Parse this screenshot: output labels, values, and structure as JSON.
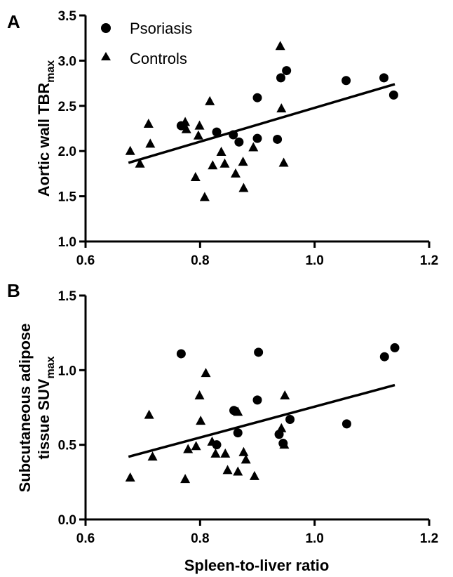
{
  "colors": {
    "ink": "#000000",
    "background": "#ffffff"
  },
  "chart_data": [
    {
      "panel": "A",
      "type": "scatter",
      "xlabel": "",
      "ylabel": "Aortic wall TBR",
      "ylabel_sub": "max",
      "xlim": [
        0.6,
        1.2
      ],
      "ylim": [
        1.0,
        3.5
      ],
      "xticks": [
        "0.6",
        "0.8",
        "1.0",
        "1.2"
      ],
      "yticks": [
        "1.0",
        "1.5",
        "2.0",
        "2.5",
        "3.0",
        "3.5"
      ],
      "legend": [
        {
          "label": "Psoriasis",
          "marker": "circle"
        },
        {
          "label": "Controls",
          "marker": "triangle"
        }
      ],
      "series": [
        {
          "name": "Psoriasis",
          "marker": "circle",
          "points": [
            [
              0.767,
              2.28
            ],
            [
              0.829,
              2.21
            ],
            [
              0.858,
              2.18
            ],
            [
              0.868,
              2.1
            ],
            [
              0.9,
              2.59
            ],
            [
              0.9,
              2.14
            ],
            [
              0.935,
              2.13
            ],
            [
              0.941,
              2.81
            ],
            [
              0.951,
              2.89
            ],
            [
              1.055,
              2.78
            ],
            [
              1.121,
              2.81
            ],
            [
              1.138,
              2.62
            ]
          ]
        },
        {
          "name": "Controls",
          "marker": "triangle",
          "points": [
            [
              0.678,
              2.0
            ],
            [
              0.695,
              1.86
            ],
            [
              0.71,
              2.3
            ],
            [
              0.713,
              2.08
            ],
            [
              0.774,
              2.32
            ],
            [
              0.776,
              2.24
            ],
            [
              0.792,
              1.71
            ],
            [
              0.797,
              2.17
            ],
            [
              0.799,
              2.28
            ],
            [
              0.808,
              1.49
            ],
            [
              0.817,
              2.55
            ],
            [
              0.822,
              1.84
            ],
            [
              0.837,
              1.99
            ],
            [
              0.843,
              1.86
            ],
            [
              0.862,
              1.75
            ],
            [
              0.875,
              1.88
            ],
            [
              0.876,
              1.59
            ],
            [
              0.893,
              2.04
            ],
            [
              0.94,
              3.16
            ],
            [
              0.942,
              2.47
            ],
            [
              0.946,
              1.87
            ]
          ]
        }
      ],
      "trendline": {
        "x": [
          0.675,
          1.14
        ],
        "y": [
          1.87,
          2.74
        ]
      }
    },
    {
      "panel": "B",
      "type": "scatter",
      "xlabel": "Spleen-to-liver ratio",
      "ylabel_line1": "Subcutaneous adipose",
      "ylabel_line2": "tissue SUV",
      "ylabel_sub": "max",
      "xlim": [
        0.6,
        1.2
      ],
      "ylim": [
        0.0,
        1.5
      ],
      "xticks": [
        "0.6",
        "0.8",
        "1.0",
        "1.2"
      ],
      "yticks": [
        "0.0",
        "0.5",
        "1.0",
        "1.5"
      ],
      "series": [
        {
          "name": "Psoriasis",
          "marker": "circle",
          "points": [
            [
              0.767,
              1.11
            ],
            [
              0.829,
              0.5
            ],
            [
              0.859,
              0.73
            ],
            [
              0.866,
              0.58
            ],
            [
              0.9,
              0.8
            ],
            [
              0.902,
              1.12
            ],
            [
              0.938,
              0.57
            ],
            [
              0.945,
              0.51
            ],
            [
              0.957,
              0.67
            ],
            [
              1.056,
              0.64
            ],
            [
              1.122,
              1.09
            ],
            [
              1.14,
              1.15
            ]
          ]
        },
        {
          "name": "Controls",
          "marker": "triangle",
          "points": [
            [
              0.678,
              0.28
            ],
            [
              0.711,
              0.7
            ],
            [
              0.717,
              0.42
            ],
            [
              0.774,
              0.27
            ],
            [
              0.779,
              0.47
            ],
            [
              0.793,
              0.49
            ],
            [
              0.799,
              0.83
            ],
            [
              0.801,
              0.66
            ],
            [
              0.81,
              0.98
            ],
            [
              0.821,
              0.52
            ],
            [
              0.827,
              0.44
            ],
            [
              0.844,
              0.44
            ],
            [
              0.848,
              0.33
            ],
            [
              0.866,
              0.72
            ],
            [
              0.866,
              0.32
            ],
            [
              0.876,
              0.45
            ],
            [
              0.88,
              0.4
            ],
            [
              0.895,
              0.29
            ],
            [
              0.942,
              0.61
            ],
            [
              0.947,
              0.5
            ],
            [
              0.948,
              0.83
            ]
          ]
        }
      ],
      "trendline": {
        "x": [
          0.675,
          1.14
        ],
        "y": [
          0.42,
          0.9
        ]
      }
    }
  ]
}
